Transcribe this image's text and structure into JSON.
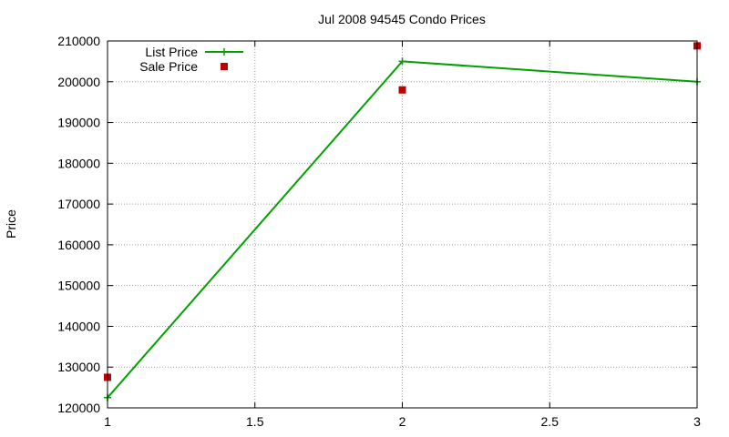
{
  "chart_data": {
    "type": "line",
    "title": "Jul 2008 94545 Condo Prices",
    "xlabel": "",
    "ylabel": "Price",
    "xlim": [
      1,
      3
    ],
    "ylim": [
      120000,
      210000
    ],
    "x_ticks": [
      "1",
      "1.5",
      "2",
      "2.5",
      "3"
    ],
    "x_tick_values": [
      1,
      1.5,
      2,
      2.5,
      3
    ],
    "y_ticks": [
      "120000",
      "130000",
      "140000",
      "150000",
      "160000",
      "170000",
      "180000",
      "190000",
      "200000",
      "210000"
    ],
    "y_tick_values": [
      120000,
      130000,
      140000,
      150000,
      160000,
      170000,
      180000,
      190000,
      200000,
      210000
    ],
    "grid": true,
    "legend_position": "top-left",
    "series": [
      {
        "name": "List Price",
        "style": "linespoints",
        "marker": "plus",
        "color": "#00a000",
        "x": [
          1,
          2,
          3
        ],
        "values": [
          122500,
          205000,
          200000
        ]
      },
      {
        "name": "Sale Price",
        "style": "points",
        "marker": "square",
        "color": "#c00000",
        "x": [
          1,
          2,
          3
        ],
        "values": [
          127500,
          198000,
          208800
        ]
      }
    ]
  }
}
